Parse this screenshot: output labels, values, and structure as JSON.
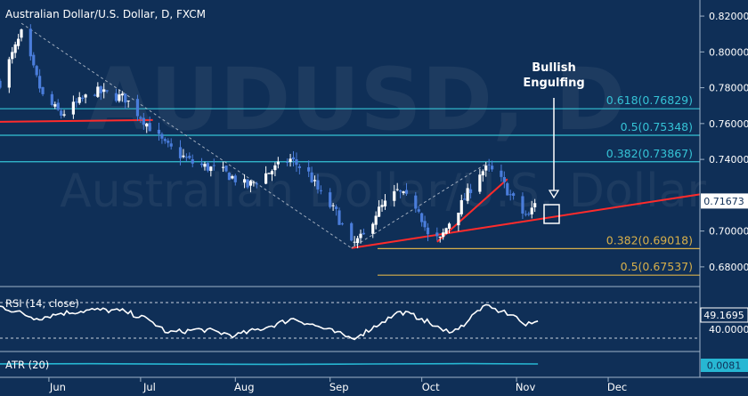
{
  "header": {
    "title": "Australian Dollar/U.S. Dollar, D, FXCM",
    "watermark_symbol": "AUDUSD, D",
    "watermark_name": "Australian Dollar/U.S. Dollar"
  },
  "annotation": {
    "line1": "Bullish",
    "line2": "Engulfing"
  },
  "colors": {
    "background": "#0f2f57",
    "candle_up": "#ffffff",
    "candle_down": "#4a7ddb",
    "fib_upper": "#35c3d6",
    "fib_lower": "#d8b04a",
    "trendline": "#ff2b2b",
    "text": "#ffffff",
    "rsi_line": "#ffffff",
    "atr_line": "#27b7d3",
    "last_price_box": "#ffffff",
    "atr_box": "#27b7d3"
  },
  "chart_data": [
    {
      "type": "candlestick",
      "title": "Australian Dollar/U.S. Dollar, D, FXCM",
      "x_ticks": [
        "Jun",
        "Jul",
        "Aug",
        "Sep",
        "Oct",
        "Nov",
        "Dec"
      ],
      "y_ticks": [
        "0.82000",
        "0.80000",
        "0.78000",
        "0.76000",
        "0.74000",
        "0.70000",
        "0.68000"
      ],
      "ylim": [
        0.671,
        0.826
      ],
      "last_price": "0.71673",
      "fib_levels": [
        {
          "label": "0.618(0.76829)",
          "value": 0.76829,
          "group": "upper"
        },
        {
          "label": "0.5(0.75348)",
          "value": 0.75348,
          "group": "upper"
        },
        {
          "label": "0.382(0.73867)",
          "value": 0.73867,
          "group": "upper"
        },
        {
          "label": "0.382(0.69018)",
          "value": 0.69018,
          "group": "lower"
        },
        {
          "label": "0.5(0.67537)",
          "value": 0.67537,
          "group": "lower"
        }
      ],
      "anchors": [
        {
          "date": "2014-05-16",
          "price": 0.783
        },
        {
          "date": "2014-05-23",
          "price": 0.81
        },
        {
          "date": "2014-05-30",
          "price": 0.775
        },
        {
          "date": "2014-06-05",
          "price": 0.765
        },
        {
          "date": "2014-06-16",
          "price": 0.778
        },
        {
          "date": "2014-06-26",
          "price": 0.774
        },
        {
          "date": "2014-07-03",
          "price": 0.76
        },
        {
          "date": "2014-07-09",
          "price": 0.748
        },
        {
          "date": "2014-07-18",
          "price": 0.738
        },
        {
          "date": "2014-07-28",
          "price": 0.733
        },
        {
          "date": "2014-08-05",
          "price": 0.725
        },
        {
          "date": "2014-08-12",
          "price": 0.733
        },
        {
          "date": "2014-08-19",
          "price": 0.74
        },
        {
          "date": "2014-08-25",
          "price": 0.732
        },
        {
          "date": "2014-08-29",
          "price": 0.72
        },
        {
          "date": "2014-09-03",
          "price": 0.71
        },
        {
          "date": "2014-09-08",
          "price": 0.692
        },
        {
          "date": "2014-09-12",
          "price": 0.697
        },
        {
          "date": "2014-09-16",
          "price": 0.71
        },
        {
          "date": "2014-09-23",
          "price": 0.722
        },
        {
          "date": "2014-09-30",
          "price": 0.713
        },
        {
          "date": "2014-10-03",
          "price": 0.697
        },
        {
          "date": "2014-10-07",
          "price": 0.695
        },
        {
          "date": "2014-10-10",
          "price": 0.705
        },
        {
          "date": "2014-10-14",
          "price": 0.715
        },
        {
          "date": "2014-10-20",
          "price": 0.733
        },
        {
          "date": "2014-10-23",
          "price": 0.735
        },
        {
          "date": "2014-10-27",
          "price": 0.728
        },
        {
          "date": "2014-10-30",
          "price": 0.72
        },
        {
          "date": "2014-11-03",
          "price": 0.71
        },
        {
          "date": "2014-11-05",
          "price": 0.708
        },
        {
          "date": "2014-11-07",
          "price": 0.7167
        }
      ],
      "trendlines": [
        {
          "from": {
            "date": "2014-05-16",
            "price": 0.761
          },
          "to": {
            "date": "2014-07-05",
            "price": 0.762
          },
          "style": "solid"
        },
        {
          "from": {
            "date": "2014-09-08",
            "price": 0.6905
          },
          "to": {
            "date": "2014-12-31",
            "price": 0.7205
          },
          "style": "solid"
        },
        {
          "from": {
            "date": "2014-10-06",
            "price": 0.694
          },
          "to": {
            "date": "2014-10-29",
            "price": 0.729
          },
          "style": "solid"
        },
        {
          "from": {
            "date": "2014-05-23",
            "price": 0.816
          },
          "to": {
            "date": "2014-09-08",
            "price": 0.6905
          },
          "style": "dashed"
        },
        {
          "from": {
            "date": "2014-09-08",
            "price": 0.6905
          },
          "to": {
            "date": "2014-10-22",
            "price": 0.7375
          },
          "style": "dashed"
        }
      ]
    },
    {
      "type": "line",
      "title": "RSI (14, close)",
      "ylim": [
        20,
        80
      ],
      "y_ticks": [
        "40.0000"
      ],
      "last_value": "49.1695",
      "reference_levels": [
        30,
        70
      ],
      "x": [
        "2014-05-16",
        "2014-05-28",
        "2014-06-05",
        "2014-06-16",
        "2014-06-26",
        "2014-07-04",
        "2014-07-10",
        "2014-07-21",
        "2014-08-01",
        "2014-08-12",
        "2014-08-20",
        "2014-08-29",
        "2014-09-08",
        "2014-09-11",
        "2014-09-18",
        "2014-09-24",
        "2014-10-01",
        "2014-10-08",
        "2014-10-13",
        "2014-10-21",
        "2014-10-27",
        "2014-10-31",
        "2014-11-04",
        "2014-11-08"
      ],
      "values": [
        66,
        52,
        58,
        62,
        60,
        50,
        36,
        40,
        33,
        43,
        52,
        42,
        30,
        34,
        48,
        60,
        52,
        38,
        40,
        66,
        60,
        56,
        44,
        49.17
      ]
    },
    {
      "type": "line",
      "title": "ATR (20)",
      "ylim": [
        0,
        0.015
      ],
      "last_value": "0.0081",
      "x": [
        "2014-05-16",
        "2014-06-15",
        "2014-07-15",
        "2014-08-15",
        "2014-09-15",
        "2014-10-15",
        "2014-11-08"
      ],
      "values": [
        0.0082,
        0.0083,
        0.008,
        0.0079,
        0.0081,
        0.0084,
        0.0081
      ]
    }
  ]
}
